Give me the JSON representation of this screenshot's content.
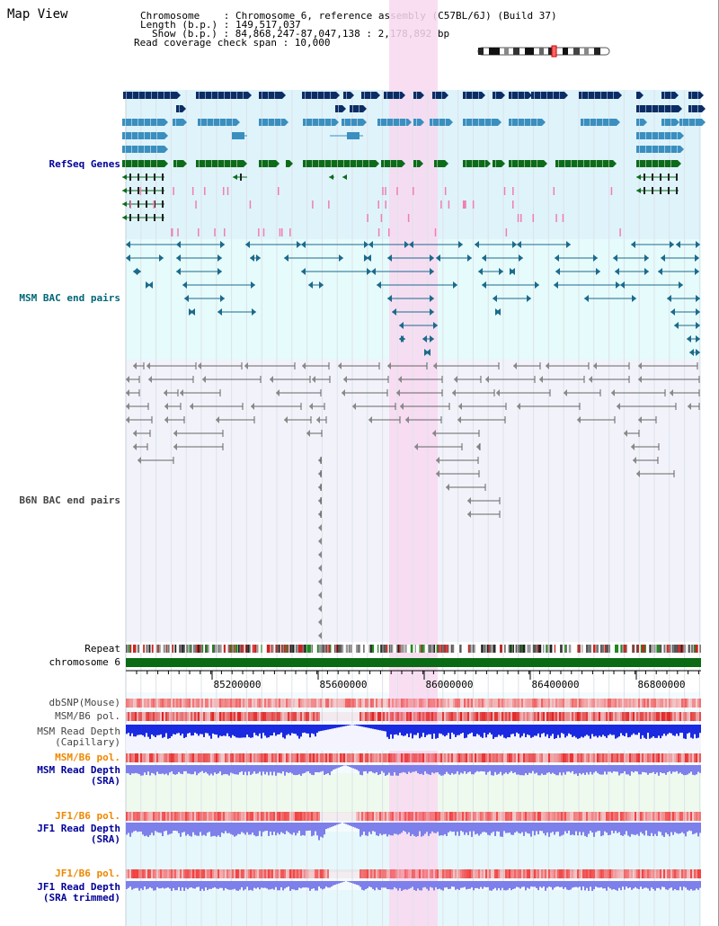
{
  "title": "Map View",
  "header": {
    "chromosome_label": "Chromosome    : Chromosome 6, reference assembly (C57BL/6J) (Build 37)",
    "length_label": "Length (b.p.) : 149,517,037",
    "show_label": "Show (b.p.) : 84,868,247-87,047,138 : 2,178,892 bp",
    "span_label": "Read coverage check span : 10,000"
  },
  "tracks": {
    "refseq": "RefSeq Genes",
    "msm_bac": "MSM BAC end pairs",
    "b6n_bac": "B6N BAC end pairs",
    "repeat": "Repeat",
    "chromosome": "chromosome 6",
    "dbsnp": "dbSNP(Mouse)",
    "msm_pol1": "MSM/B6 pol.",
    "msm_depth_cap_1": "MSM Read Depth",
    "msm_depth_cap_2": "(Capillary)",
    "msm_pol2": "MSM/B6 pol.",
    "msm_depth_sra_1": "MSM Read Depth",
    "msm_depth_sra_2": "(SRA)",
    "jf1_pol1": "JF1/B6 pol.",
    "jf1_depth_1": "JF1 Read Depth",
    "jf1_depth_2": "(SRA)",
    "jf1_pol2": "JF1/B6 pol.",
    "jf1_trim_1": "JF1 Read Depth",
    "jf1_trim_2": "(SRA trimmed)"
  },
  "axis": {
    "ticks": [
      "85200000",
      "85600000",
      "86000000",
      "86400000",
      "86800000"
    ]
  },
  "colors": {
    "refseq_bg": "#dff3fb",
    "msm_bg": "#e6fbfb",
    "b6n_bg": "#f2f2fb",
    "highlight": "#f8d8f0",
    "gene_dark": "#0b2d66",
    "gene_mid": "#3a8fbf",
    "gene_green": "#0d6b1a",
    "pink_feat": "#f07fb0",
    "msm_pair": "#1c6a8c",
    "b6n_pair": "#666666",
    "chrom_bar": "#0a6b14",
    "label_blue": "#000099",
    "label_teal": "#006677",
    "label_gray": "#444444",
    "label_orange": "#ee8800",
    "depth_blue": "#1a2ae0",
    "depth_violet": "#7d7fea"
  }
}
